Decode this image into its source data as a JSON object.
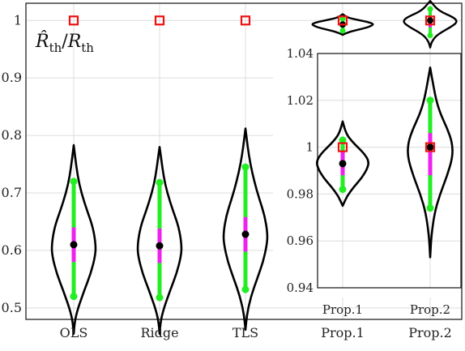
{
  "chart_data": [
    {
      "type": "violin",
      "title": "",
      "ylabel_main": "R̂",
      "ylabel_sub_main": "th",
      "ylabel_sep": "/",
      "ylabel_den": "R",
      "ylabel_sub_den": "th",
      "ylim": [
        0.48,
        1.03
      ],
      "yticks": [
        0.5,
        0.6,
        0.7,
        0.8,
        0.9,
        1.0
      ],
      "ytick_labels": [
        "0.5",
        "0.6",
        "0.7",
        "0.8",
        "0.9",
        "1"
      ],
      "grid": true,
      "categories": [
        "OLS",
        "Ridge",
        "TLS",
        "Prop.1",
        "Prop.2"
      ],
      "series": [
        {
          "category": "OLS",
          "min": 0.455,
          "max": 0.783,
          "q_low": 0.52,
          "q_high": 0.72,
          "iqr_low": 0.58,
          "iqr_high": 0.64,
          "median": 0.61,
          "truth": 1.0,
          "density": [
            [
              0.455,
              0.0
            ],
            [
              0.48,
              0.05
            ],
            [
              0.5,
              0.16
            ],
            [
              0.53,
              0.38
            ],
            [
              0.56,
              0.62
            ],
            [
              0.59,
              0.78
            ],
            [
              0.61,
              0.8
            ],
            [
              0.64,
              0.7
            ],
            [
              0.67,
              0.48
            ],
            [
              0.7,
              0.28
            ],
            [
              0.73,
              0.14
            ],
            [
              0.76,
              0.06
            ],
            [
              0.783,
              0.0
            ]
          ]
        },
        {
          "category": "Ridge",
          "min": 0.455,
          "max": 0.78,
          "q_low": 0.518,
          "q_high": 0.718,
          "iqr_low": 0.578,
          "iqr_high": 0.638,
          "median": 0.608,
          "truth": 1.0,
          "density": [
            [
              0.455,
              0.0
            ],
            [
              0.48,
              0.05
            ],
            [
              0.5,
              0.16
            ],
            [
              0.53,
              0.38
            ],
            [
              0.56,
              0.62
            ],
            [
              0.59,
              0.78
            ],
            [
              0.61,
              0.8
            ],
            [
              0.64,
              0.7
            ],
            [
              0.67,
              0.48
            ],
            [
              0.7,
              0.28
            ],
            [
              0.73,
              0.14
            ],
            [
              0.76,
              0.06
            ],
            [
              0.78,
              0.0
            ]
          ]
        },
        {
          "category": "TLS",
          "min": 0.462,
          "max": 0.812,
          "q_low": 0.532,
          "q_high": 0.745,
          "iqr_low": 0.598,
          "iqr_high": 0.658,
          "median": 0.628,
          "truth": 1.0,
          "density": [
            [
              0.462,
              0.0
            ],
            [
              0.49,
              0.06
            ],
            [
              0.52,
              0.2
            ],
            [
              0.55,
              0.42
            ],
            [
              0.58,
              0.64
            ],
            [
              0.61,
              0.78
            ],
            [
              0.63,
              0.8
            ],
            [
              0.66,
              0.7
            ],
            [
              0.69,
              0.5
            ],
            [
              0.72,
              0.32
            ],
            [
              0.75,
              0.18
            ],
            [
              0.78,
              0.08
            ],
            [
              0.812,
              0.0
            ]
          ]
        },
        {
          "category": "Prop.1",
          "min": 0.975,
          "max": 1.011,
          "q_low": 0.982,
          "q_high": 1.003,
          "iqr_low": 0.988,
          "iqr_high": 0.998,
          "median": 0.993,
          "truth": 1.0,
          "density": [
            [
              0.975,
              0.0
            ],
            [
              0.979,
              0.15
            ],
            [
              0.983,
              0.4
            ],
            [
              0.987,
              0.7
            ],
            [
              0.991,
              0.9
            ],
            [
              0.994,
              0.95
            ],
            [
              0.997,
              0.8
            ],
            [
              1.0,
              0.55
            ],
            [
              1.003,
              0.3
            ],
            [
              1.006,
              0.12
            ],
            [
              1.011,
              0.0
            ]
          ]
        },
        {
          "category": "Prop.2",
          "min": 0.953,
          "max": 1.034,
          "q_low": 0.974,
          "q_high": 1.02,
          "iqr_low": 0.988,
          "iqr_high": 1.006,
          "median": 1.0,
          "truth": 1.0,
          "density": [
            [
              0.953,
              0.0
            ],
            [
              0.962,
              0.04
            ],
            [
              0.972,
              0.16
            ],
            [
              0.98,
              0.36
            ],
            [
              0.988,
              0.62
            ],
            [
              0.996,
              0.82
            ],
            [
              1.002,
              0.8
            ],
            [
              1.008,
              0.62
            ],
            [
              1.014,
              0.38
            ],
            [
              1.02,
              0.22
            ],
            [
              1.026,
              0.12
            ],
            [
              1.03,
              0.06
            ],
            [
              1.034,
              0.0
            ]
          ]
        }
      ]
    },
    {
      "type": "violin",
      "title": "",
      "inset": true,
      "ylim": [
        0.94,
        1.04
      ],
      "yticks": [
        0.94,
        0.96,
        0.98,
        1.0,
        1.02,
        1.04
      ],
      "ytick_labels": [
        "0.94",
        "0.96",
        "0.98",
        "1",
        "1.02",
        "1.04"
      ],
      "grid": true,
      "categories": [
        "Prop.1",
        "Prop.2"
      ]
    }
  ],
  "colors": {
    "outline": "#000000",
    "quantile_bar": "#22ee22",
    "iqr_bar": "#ee22ee",
    "median_dot": "#000000",
    "truth_marker": "#ee1111",
    "grid": "#dcdcdc",
    "axis": "#222222"
  }
}
